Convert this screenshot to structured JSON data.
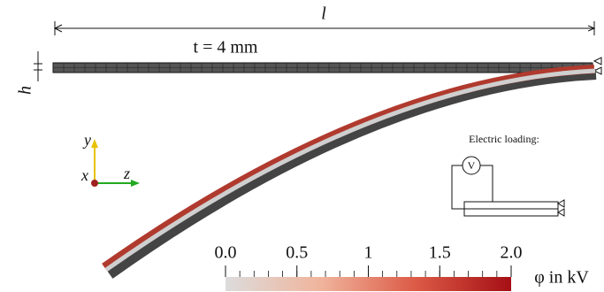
{
  "dimensions": {
    "length": "l",
    "height": "h",
    "thickness": "t = 4 mm"
  },
  "axes": {
    "y": "y",
    "x": "x",
    "z": "z"
  },
  "inset": {
    "title": "Electric loading:",
    "meter": "V"
  },
  "colorbar": {
    "label": "φ in kV",
    "lim": [
      0,
      2
    ],
    "ticks": [
      {
        "value": 0,
        "label": "0.0"
      },
      {
        "value": 0.5,
        "label": "0.5"
      },
      1,
      {
        "value": 1.5,
        "label": "1.5"
      },
      {
        "value": 2,
        "label": "2.0"
      }
    ],
    "colors": [
      "#dcdcdc",
      "#f0b49c",
      "#dc5a46",
      "#a50f15"
    ]
  }
}
